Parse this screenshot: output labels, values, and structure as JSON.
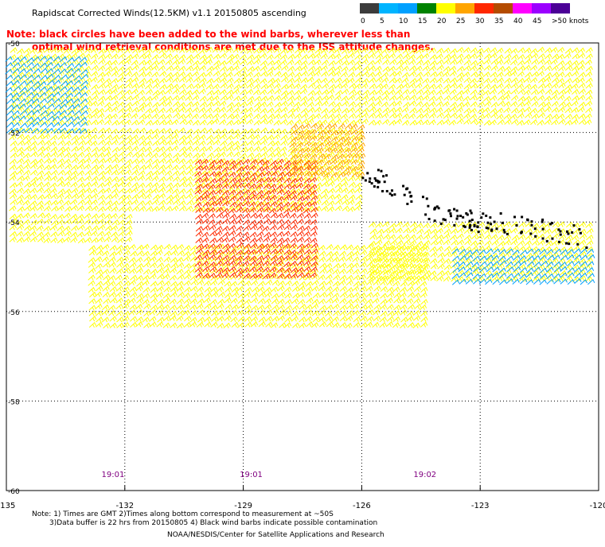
{
  "header": {
    "title": "Rapidscat Corrected Winds(12.5KM) v1.1 20150805 ascending",
    "note_line1": "Note: black circles have been added to the wind barbs, wherever less than",
    "note_line2": "optimal wind retrieval conditions are met due to the ISS attitude changes."
  },
  "speed_scale": {
    "labels": [
      "0",
      "5",
      "10",
      "15",
      "20",
      "25",
      "30",
      "35",
      "40",
      "45",
      ">50 knots"
    ],
    "colors": [
      "#3c3c3c",
      "#00b4ff",
      "#00a0ff",
      "#008200",
      "#ffff00",
      "#ffa500",
      "#ff2800",
      "#b44b00",
      "#ff00ff",
      "#9b00ff",
      "#4b0096"
    ]
  },
  "chart_data": {
    "type": "wind_barb_map",
    "xlim": [
      -135,
      -120
    ],
    "ylim": [
      -60,
      -50
    ],
    "x_ticks": [
      "-135",
      "-132",
      "-129",
      "-126",
      "-123",
      "-120"
    ],
    "y_ticks": [
      "-50",
      "-52",
      "-54",
      "-56",
      "-58",
      "-60"
    ],
    "x_tick_values": [
      -135,
      -132,
      -129,
      -126,
      -123,
      -120
    ],
    "y_tick_values": [
      -50,
      -52,
      -54,
      -56,
      -58,
      -60
    ],
    "grid": "dotted",
    "pass_times": [
      {
        "label": "19:01",
        "lon": -132.3
      },
      {
        "label": "19:01",
        "lon": -128.8
      },
      {
        "label": "19:02",
        "lon": -124.4
      }
    ],
    "wind_regions": [
      {
        "name": "upper swath",
        "lon": [
          -134.9,
          -120.2
        ],
        "lat": [
          -51.9,
          -50.1
        ],
        "speed_kt": 20
      },
      {
        "name": "mid band",
        "lon": [
          -134.9,
          -126.0
        ],
        "lat": [
          -53.8,
          -51.9
        ],
        "speed_kt": 20
      },
      {
        "name": "western band",
        "lon": [
          -134.9,
          -131.9
        ],
        "lat": [
          -54.5,
          -53.8
        ],
        "speed_kt": 20
      },
      {
        "name": "eastern band",
        "lon": [
          -125.8,
          -120.1
        ],
        "lat": [
          -55.4,
          -54.0
        ],
        "speed_kt": 20
      },
      {
        "name": "southern band",
        "lon": [
          -132.9,
          -124.4
        ],
        "lat": [
          -56.4,
          -54.5
        ],
        "speed_kt": 20
      },
      {
        "name": "center core",
        "lon": [
          -130.2,
          -127.1
        ],
        "lat": [
          -55.3,
          -52.6
        ],
        "speed_kt": 30
      },
      {
        "name": "northeast core",
        "lon": [
          -127.8,
          -126.0
        ],
        "lat": [
          -53.0,
          -51.8
        ],
        "speed_kt": 27
      },
      {
        "name": "northwest calm",
        "lon": [
          -135.0,
          -132.9
        ],
        "lat": [
          -52.1,
          -50.3
        ],
        "speed_kt": 13
      },
      {
        "name": "east calm",
        "lon": [
          -123.7,
          -120.1
        ],
        "lat": [
          -55.4,
          -54.6
        ],
        "speed_kt": 14
      }
    ],
    "contaminated_region": {
      "lon": [
        -126.0,
        -120.3
      ],
      "lat": [
        -54.7,
        -52.8
      ]
    }
  },
  "footer": {
    "line1": "Note: 1) Times are GMT 2)Times along bottom correspond to measurement at ~50S",
    "line2": "3)Data buffer is 22 hrs from 20150805 4) Black wind barbs indicate possible contamination",
    "line3": "NOAA/NESDIS/Center for Satellite Applications and Research"
  }
}
